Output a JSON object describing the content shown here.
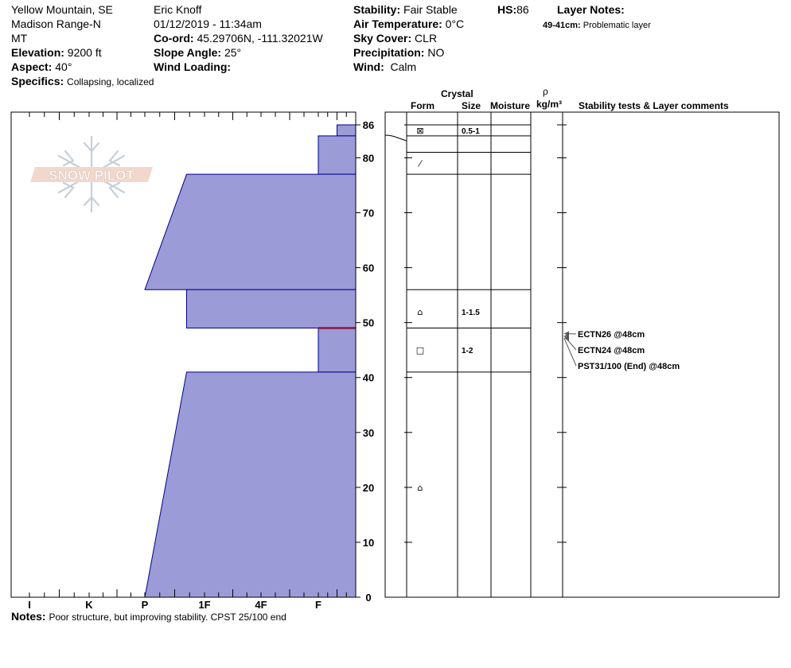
{
  "header": {
    "location": "Yellow Mountain, SE",
    "range": "Madison Range-N",
    "state": "MT",
    "elevation_label": "Elevation:",
    "elevation_value": "9200 ft",
    "aspect_label": "Aspect:",
    "aspect_value": "40°",
    "specifics_label": "Specifics:",
    "specifics_value": "Collapsing, localized",
    "observer": "Eric Knoff",
    "datetime": "01/12/2019 - 11:34am",
    "coord_label": "Co-ord:",
    "coord_value": "45.29706N, -111.32021W",
    "slope_label": "Slope Angle:",
    "slope_value": "25°",
    "wind_loading_label": "Wind Loading:",
    "stability_label": "Stability:",
    "stability_value": "Fair Stable",
    "air_temp_label": "Air Temperature:",
    "air_temp_value": "0°C",
    "sky_label": "Sky Cover:",
    "sky_value": "CLR",
    "precip_label": "Precipitation:",
    "precip_value": "NO",
    "wind_label": "Wind:",
    "wind_value": "Calm",
    "hs_label": "HS:",
    "hs_value": "86",
    "layer_notes_label": "Layer Notes:",
    "layer_note_depth": "49-41cm:",
    "layer_note_text": "Problematic layer"
  },
  "logo_text": "SNOW PILOT",
  "notes_label": "Notes:",
  "notes_value": "Poor structure, but improving stability. CPST 25/100 end",
  "columns": {
    "crystal": "Crystal",
    "form": "Form",
    "size": "Size",
    "moisture": "Moisture",
    "rho": "ρ",
    "density_unit": "kg/m³",
    "comments": "Stability tests & Layer comments"
  },
  "colors": {
    "profile_fill": "#9b9bd7",
    "profile_stroke": "#00008b",
    "weak_layer": "#8b1a3a"
  },
  "chart_data": {
    "type": "area",
    "x_ticks": [
      "I",
      "K",
      "P",
      "1F",
      "4F",
      "F"
    ],
    "y_ticks": [
      0,
      10,
      20,
      30,
      40,
      50,
      60,
      70,
      80,
      86
    ],
    "ylim": [
      0,
      86
    ],
    "hardness_layers": [
      {
        "bottom": 84,
        "top": 86,
        "hardness_bottom": 0.5,
        "hardness_top": 0.5
      },
      {
        "bottom": 77,
        "top": 84,
        "hardness_bottom": 1.0,
        "hardness_top": 1.0
      },
      {
        "bottom": 56,
        "top": 77,
        "hardness_bottom": 4.0,
        "hardness_top": 3.3
      },
      {
        "bottom": 49,
        "top": 56,
        "hardness_bottom": 3.3,
        "hardness_top": 3.3
      },
      {
        "bottom": 41,
        "top": 49,
        "hardness_bottom": 1.0,
        "hardness_top": 1.0
      },
      {
        "bottom": 0,
        "top": 41,
        "hardness_bottom": 4.0,
        "hardness_top": 3.3
      }
    ],
    "weak_layer_depth": 49,
    "layer_boundaries": [
      86,
      84,
      81,
      77,
      56,
      49,
      41
    ],
    "crystals": [
      {
        "depth": 85,
        "form": "⊠",
        "size": "0.5-1"
      },
      {
        "depth": 79,
        "form": "⁄",
        "size": ""
      },
      {
        "depth": 52,
        "form": "⌂",
        "size": "1-1.5"
      },
      {
        "depth": 45,
        "form": "□",
        "size": "1-2"
      },
      {
        "depth": 20,
        "form": "⌂",
        "size": ""
      }
    ],
    "stability_tests": [
      {
        "depth": 48,
        "text": "ECTN26 @48cm"
      },
      {
        "depth": 48,
        "text": "ECTN24 @48cm"
      },
      {
        "depth": 48,
        "text": "PST31/100 (End) @48cm"
      }
    ]
  }
}
